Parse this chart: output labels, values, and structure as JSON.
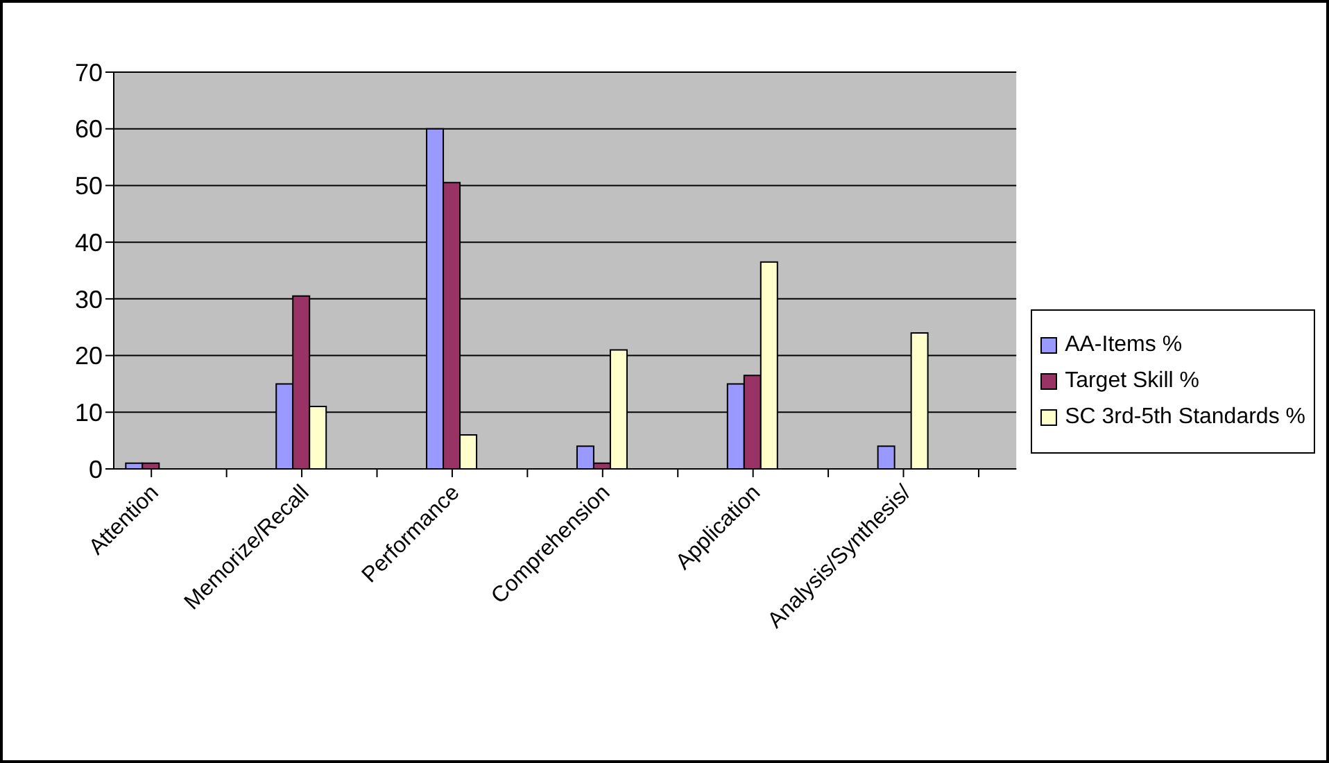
{
  "chart_data": {
    "type": "bar",
    "categories": [
      "Attention",
      null,
      "Memorize/Recall",
      null,
      "Performance",
      null,
      "Comprehension",
      null,
      "Application",
      null,
      "Analysis/Synthesis/",
      null
    ],
    "series": [
      {
        "name": "AA-Items %",
        "color": "#9999ff",
        "values": [
          1,
          null,
          15,
          null,
          60,
          null,
          4,
          null,
          15,
          null,
          4,
          null
        ]
      },
      {
        "name": "Target Skill %",
        "color": "#993366",
        "values": [
          1,
          null,
          30.5,
          null,
          50.5,
          null,
          1,
          null,
          16.5,
          null,
          0,
          null
        ]
      },
      {
        "name": "SC 3rd-5th Standards %",
        "color": "#ffffcc",
        "values": [
          0,
          null,
          11,
          null,
          6,
          null,
          21,
          null,
          36.5,
          null,
          24,
          null
        ]
      }
    ],
    "ylim": [
      0,
      70
    ],
    "yticks": [
      0,
      10,
      20,
      30,
      40,
      50,
      60,
      70
    ],
    "grid": "y",
    "legend": "right"
  }
}
